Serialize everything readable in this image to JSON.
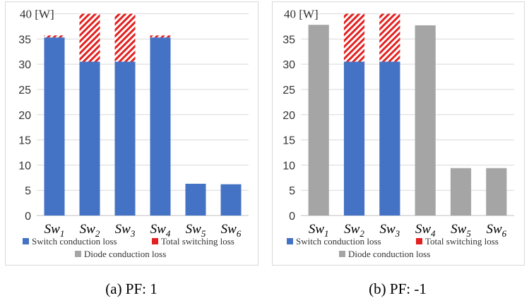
{
  "chart_data": [
    {
      "type": "bar",
      "stacked": true,
      "caption": "(a)  PF:  1",
      "unit_label": "40 [W]",
      "categories": [
        {
          "base": "Sw",
          "sub": "1"
        },
        {
          "base": "Sw",
          "sub": "2"
        },
        {
          "base": "Sw",
          "sub": "3"
        },
        {
          "base": "Sw",
          "sub": "4"
        },
        {
          "base": "Sw",
          "sub": "5"
        },
        {
          "base": "Sw",
          "sub": "6"
        }
      ],
      "yticks": [
        "0",
        "5",
        "10",
        "15",
        "20",
        "25",
        "30",
        "35"
      ],
      "ylim": [
        0,
        40
      ],
      "grid": true,
      "series": [
        {
          "name": "Switch conduction loss",
          "color": "#4472C4",
          "fill": "solid",
          "values": [
            35.3,
            30.5,
            30.5,
            35.3,
            6.3,
            6.2
          ]
        },
        {
          "name": "Total switching loss",
          "color": "#E32121",
          "fill": "hatched",
          "values": [
            0.4,
            9.5,
            9.5,
            0.4,
            0,
            0
          ]
        },
        {
          "name": "Diode conduction loss",
          "color": "#A5A5A5",
          "fill": "solid",
          "values": [
            0,
            0,
            0,
            0,
            0,
            0
          ]
        }
      ],
      "legend_placement": "bottom"
    },
    {
      "type": "bar",
      "stacked": true,
      "caption": "(b)  PF:  -1",
      "unit_label": "40 [W]",
      "categories": [
        {
          "base": "Sw",
          "sub": "1"
        },
        {
          "base": "Sw",
          "sub": "2"
        },
        {
          "base": "Sw",
          "sub": "3"
        },
        {
          "base": "Sw",
          "sub": "4"
        },
        {
          "base": "Sw",
          "sub": "5"
        },
        {
          "base": "Sw",
          "sub": "6"
        }
      ],
      "yticks": [
        "0",
        "5",
        "10",
        "15",
        "20",
        "25",
        "30",
        "35"
      ],
      "ylim": [
        0,
        40
      ],
      "grid": true,
      "series": [
        {
          "name": "Switch conduction loss",
          "color": "#4472C4",
          "fill": "solid",
          "values": [
            0,
            30.5,
            30.5,
            0,
            0,
            0
          ]
        },
        {
          "name": "Total switching loss",
          "color": "#E32121",
          "fill": "hatched",
          "values": [
            0,
            9.5,
            9.5,
            0,
            0,
            0
          ]
        },
        {
          "name": "Diode conduction loss",
          "color": "#A5A5A5",
          "fill": "solid",
          "values": [
            37.8,
            0,
            0,
            37.7,
            9.4,
            9.4
          ]
        }
      ],
      "legend_placement": "bottom"
    }
  ]
}
